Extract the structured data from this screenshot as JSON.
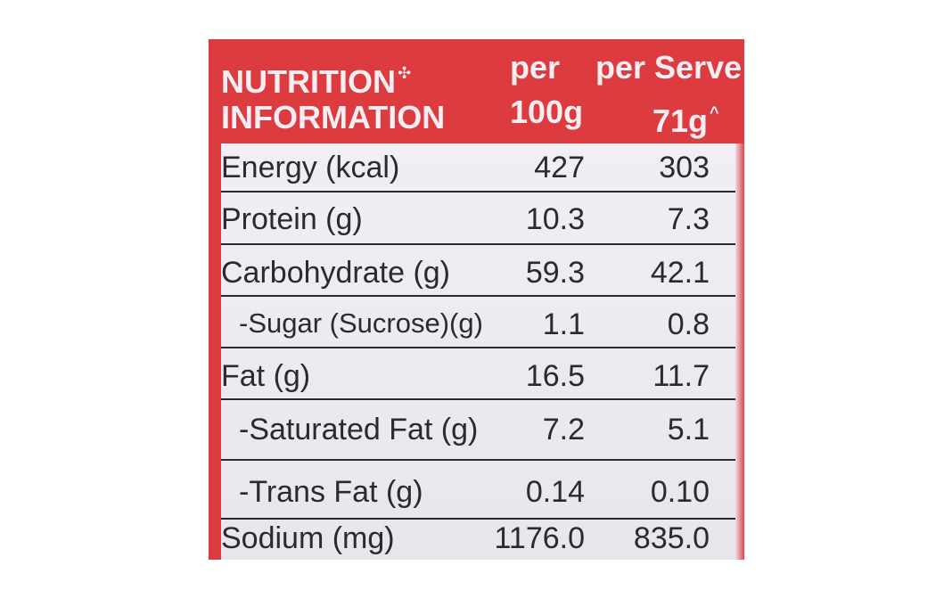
{
  "header": {
    "title_line1": "NUTRITION",
    "title_mark": "✣",
    "title_line2": "INFORMATION",
    "col1_line1": "per",
    "col1_line2": "100g",
    "col2_line1": "per Serve",
    "col2_line2": "71g",
    "col2_mark": "^"
  },
  "rows": [
    {
      "name": "Energy (kcal)",
      "per_100g": "427",
      "per_serve": "303"
    },
    {
      "name": "Protein (g)",
      "per_100g": "10.3",
      "per_serve": "7.3"
    },
    {
      "name": "Carbohydrate (g)",
      "per_100g": "59.3",
      "per_serve": "42.1"
    },
    {
      "name": "-Sugar (Sucrose)(g)",
      "per_100g": "1.1",
      "per_serve": "0.8"
    },
    {
      "name": "Fat (g)",
      "per_100g": "16.5",
      "per_serve": "11.7"
    },
    {
      "name": "-Saturated Fat (g)",
      "per_100g": "7.2",
      "per_serve": "5.1"
    },
    {
      "name": "-Trans Fat (g)",
      "per_100g": "0.14",
      "per_serve": "0.10"
    },
    {
      "name": "Sodium (mg)",
      "per_100g": "1176.0",
      "per_serve": "835.0"
    }
  ],
  "colors": {
    "header_red": "#dc3b40",
    "body_bg": "#e8e4ea",
    "text": "#2b2a2e"
  }
}
